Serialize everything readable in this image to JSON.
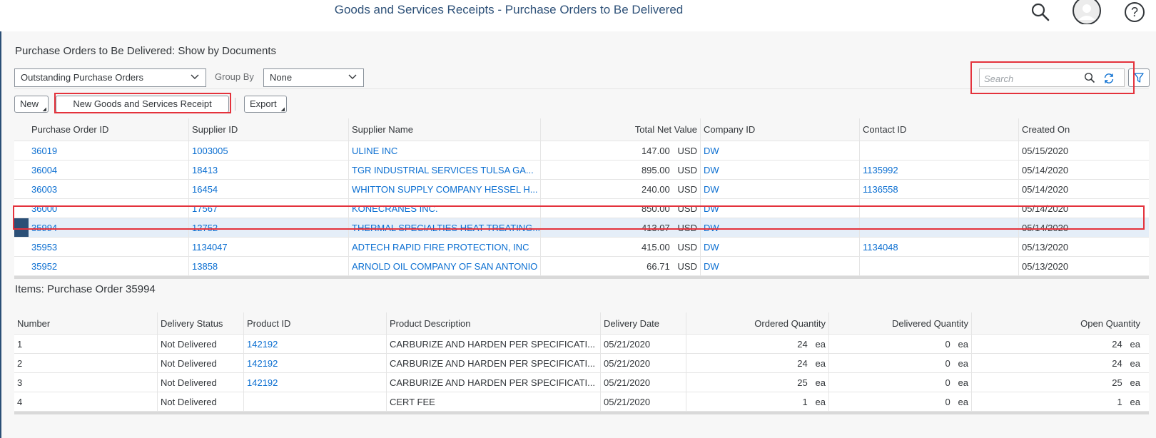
{
  "shell": {
    "title": "Goods and Services Receipts - Purchase Orders to Be Delivered"
  },
  "page": {
    "title": "Purchase Orders to Be Delivered: Show by Documents",
    "filters": {
      "view_value": "Outstanding Purchase Orders",
      "group_by_label": "Group By",
      "group_by_value": "None",
      "search_placeholder": "Search"
    },
    "toolbar": {
      "new_label": "New",
      "new_gsr_label": "New Goods and Services Receipt",
      "export_label": "Export"
    }
  },
  "po_table": {
    "columns": [
      "Purchase Order ID",
      "Supplier ID",
      "Supplier Name",
      "Total Net Value",
      "Company ID",
      "Contact ID",
      "Created On"
    ],
    "rows": [
      {
        "po_id": "36019",
        "supplier_id": "1003005",
        "supplier_name": "ULINE INC",
        "net_value": "147.00",
        "currency": "USD",
        "company_id": "DW",
        "contact_id": "",
        "created_on": "05/15/2020",
        "selected": false
      },
      {
        "po_id": "36004",
        "supplier_id": "18413",
        "supplier_name": "TGR INDUSTRIAL SERVICES TULSA GA...",
        "net_value": "895.00",
        "currency": "USD",
        "company_id": "DW",
        "contact_id": "1135992",
        "created_on": "05/14/2020",
        "selected": false
      },
      {
        "po_id": "36003",
        "supplier_id": "16454",
        "supplier_name": "WHITTON SUPPLY COMPANY HESSEL H...",
        "net_value": "240.00",
        "currency": "USD",
        "company_id": "DW",
        "contact_id": "1136558",
        "created_on": "05/14/2020",
        "selected": false
      },
      {
        "po_id": "36000",
        "supplier_id": "17567",
        "supplier_name": "KONECRANES INC.",
        "net_value": "850.00",
        "currency": "USD",
        "company_id": "DW",
        "contact_id": "",
        "created_on": "05/14/2020",
        "selected": false
      },
      {
        "po_id": "35994",
        "supplier_id": "12752",
        "supplier_name": "THERMAL SPECIALTIES HEAT TREATING...",
        "net_value": "413.07",
        "currency": "USD",
        "company_id": "DW",
        "contact_id": "",
        "created_on": "05/14/2020",
        "selected": true
      },
      {
        "po_id": "35953",
        "supplier_id": "1134047",
        "supplier_name": "ADTECH RAPID FIRE PROTECTION, INC",
        "net_value": "415.00",
        "currency": "USD",
        "company_id": "DW",
        "contact_id": "1134048",
        "created_on": "05/13/2020",
        "selected": false
      },
      {
        "po_id": "35952",
        "supplier_id": "13858",
        "supplier_name": "ARNOLD OIL COMPANY OF SAN ANTONIO",
        "net_value": "66.71",
        "currency": "USD",
        "company_id": "DW",
        "contact_id": "",
        "created_on": "05/13/2020",
        "selected": false
      }
    ]
  },
  "items": {
    "title": "Items: Purchase Order 35994",
    "columns": [
      "Number",
      "Delivery Status",
      "Product ID",
      "Product Description",
      "Delivery Date",
      "Ordered Quantity",
      "Delivered Quantity",
      "Open Quantity"
    ],
    "rows": [
      {
        "number": "1",
        "status": "Not Delivered",
        "product_id": "142192",
        "description": "CARBURIZE AND HARDEN PER SPECIFICATI...",
        "delivery_date": "05/21/2020",
        "ordered": "24",
        "delivered": "0",
        "open": "24",
        "unit": "ea"
      },
      {
        "number": "2",
        "status": "Not Delivered",
        "product_id": "142192",
        "description": "CARBURIZE AND HARDEN PER SPECIFICATI...",
        "delivery_date": "05/21/2020",
        "ordered": "24",
        "delivered": "0",
        "open": "24",
        "unit": "ea"
      },
      {
        "number": "3",
        "status": "Not Delivered",
        "product_id": "142192",
        "description": "CARBURIZE AND HARDEN PER SPECIFICATI...",
        "delivery_date": "05/21/2020",
        "ordered": "25",
        "delivered": "0",
        "open": "25",
        "unit": "ea"
      },
      {
        "number": "4",
        "status": "Not Delivered",
        "product_id": "",
        "description": "CERT FEE",
        "delivery_date": "05/21/2020",
        "ordered": "1",
        "delivered": "0",
        "open": "1",
        "unit": "ea"
      }
    ]
  },
  "colors": {
    "link": "#0a6ed1",
    "shell_title": "#2f5279",
    "selection_marker": "#2b4f76",
    "highlight": "#e4323c"
  },
  "icons": {
    "shell": [
      "search-icon",
      "avatar-icon",
      "help-icon"
    ],
    "search_box": [
      "search-icon",
      "refresh-icon"
    ],
    "filter": "filter-icon"
  }
}
